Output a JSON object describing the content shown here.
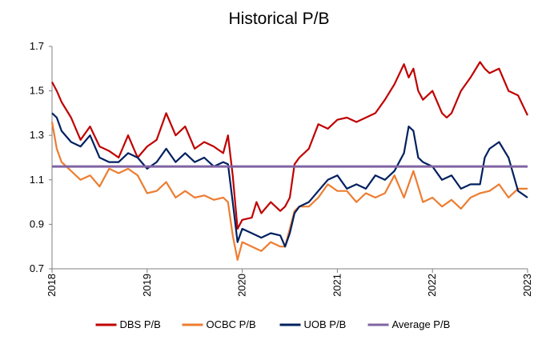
{
  "chart_data": {
    "type": "line",
    "title": "Historical P/B",
    "xlabel": "",
    "ylabel": "",
    "xlim": [
      2018,
      2023
    ],
    "ylim": [
      0.7,
      1.7
    ],
    "y_ticks": [
      "0.7",
      "0.9",
      "1.1",
      "1.3",
      "1.5",
      "1.7"
    ],
    "x_ticks": [
      "2018",
      "2019",
      "2020",
      "2021",
      "2022",
      "2023"
    ],
    "grid": false,
    "legend_position": "bottom",
    "series": [
      {
        "name": "DBS P/B",
        "color": "#C00000",
        "x": [
          2018.0,
          2018.05,
          2018.1,
          2018.2,
          2018.3,
          2018.4,
          2018.5,
          2018.6,
          2018.7,
          2018.8,
          2018.9,
          2019.0,
          2019.1,
          2019.2,
          2019.3,
          2019.4,
          2019.5,
          2019.6,
          2019.7,
          2019.8,
          2019.85,
          2019.9,
          2019.95,
          2020.0,
          2020.1,
          2020.15,
          2020.2,
          2020.3,
          2020.4,
          2020.45,
          2020.5,
          2020.55,
          2020.6,
          2020.7,
          2020.8,
          2020.9,
          2021.0,
          2021.1,
          2021.2,
          2021.3,
          2021.4,
          2021.5,
          2021.6,
          2021.7,
          2021.75,
          2021.8,
          2021.85,
          2021.9,
          2022.0,
          2022.1,
          2022.15,
          2022.2,
          2022.3,
          2022.4,
          2022.5,
          2022.55,
          2022.6,
          2022.7,
          2022.8,
          2022.9,
          2023.0
        ],
        "values": [
          1.54,
          1.5,
          1.45,
          1.38,
          1.28,
          1.34,
          1.25,
          1.23,
          1.2,
          1.3,
          1.2,
          1.25,
          1.28,
          1.4,
          1.3,
          1.34,
          1.24,
          1.27,
          1.25,
          1.22,
          1.3,
          1.12,
          0.88,
          0.92,
          0.93,
          1.0,
          0.95,
          1.0,
          0.96,
          0.98,
          1.02,
          1.17,
          1.2,
          1.24,
          1.35,
          1.33,
          1.37,
          1.38,
          1.36,
          1.38,
          1.4,
          1.46,
          1.53,
          1.62,
          1.56,
          1.6,
          1.5,
          1.46,
          1.5,
          1.4,
          1.38,
          1.4,
          1.5,
          1.56,
          1.63,
          1.6,
          1.58,
          1.6,
          1.5,
          1.48,
          1.39
        ]
      },
      {
        "name": "OCBC P/B",
        "color": "#ED7D31",
        "x": [
          2018.0,
          2018.05,
          2018.1,
          2018.2,
          2018.3,
          2018.4,
          2018.5,
          2018.6,
          2018.7,
          2018.8,
          2018.9,
          2019.0,
          2019.1,
          2019.2,
          2019.3,
          2019.4,
          2019.5,
          2019.6,
          2019.7,
          2019.8,
          2019.85,
          2019.9,
          2019.95,
          2020.0,
          2020.1,
          2020.2,
          2020.3,
          2020.4,
          2020.45,
          2020.5,
          2020.55,
          2020.6,
          2020.7,
          2020.8,
          2020.9,
          2021.0,
          2021.1,
          2021.2,
          2021.3,
          2021.4,
          2021.5,
          2021.6,
          2021.7,
          2021.8,
          2021.9,
          2022.0,
          2022.1,
          2022.2,
          2022.3,
          2022.4,
          2022.5,
          2022.6,
          2022.7,
          2022.8,
          2022.9,
          2023.0
        ],
        "values": [
          1.36,
          1.24,
          1.18,
          1.14,
          1.1,
          1.12,
          1.07,
          1.15,
          1.13,
          1.15,
          1.12,
          1.04,
          1.05,
          1.09,
          1.02,
          1.05,
          1.02,
          1.03,
          1.01,
          1.02,
          1.0,
          0.85,
          0.74,
          0.82,
          0.8,
          0.78,
          0.82,
          0.8,
          0.8,
          0.88,
          0.96,
          0.98,
          0.98,
          1.02,
          1.08,
          1.05,
          1.05,
          1.0,
          1.04,
          1.02,
          1.04,
          1.12,
          1.02,
          1.14,
          1.0,
          1.02,
          0.98,
          1.01,
          0.97,
          1.02,
          1.04,
          1.05,
          1.08,
          1.02,
          1.06,
          1.06
        ]
      },
      {
        "name": "UOB P/B",
        "color": "#002060",
        "x": [
          2018.0,
          2018.05,
          2018.1,
          2018.2,
          2018.3,
          2018.4,
          2018.5,
          2018.6,
          2018.7,
          2018.8,
          2018.9,
          2019.0,
          2019.1,
          2019.2,
          2019.3,
          2019.4,
          2019.5,
          2019.6,
          2019.7,
          2019.8,
          2019.85,
          2019.9,
          2019.95,
          2020.0,
          2020.1,
          2020.2,
          2020.3,
          2020.4,
          2020.45,
          2020.5,
          2020.55,
          2020.6,
          2020.7,
          2020.8,
          2020.9,
          2021.0,
          2021.1,
          2021.2,
          2021.3,
          2021.4,
          2021.5,
          2021.6,
          2021.7,
          2021.75,
          2021.8,
          2021.85,
          2021.9,
          2022.0,
          2022.1,
          2022.2,
          2022.3,
          2022.4,
          2022.5,
          2022.55,
          2022.6,
          2022.7,
          2022.8,
          2022.9,
          2023.0
        ],
        "values": [
          1.4,
          1.38,
          1.32,
          1.27,
          1.25,
          1.3,
          1.2,
          1.18,
          1.18,
          1.22,
          1.2,
          1.15,
          1.18,
          1.24,
          1.18,
          1.22,
          1.18,
          1.2,
          1.16,
          1.18,
          1.17,
          1.0,
          0.82,
          0.88,
          0.86,
          0.84,
          0.86,
          0.85,
          0.8,
          0.86,
          0.95,
          0.98,
          1.0,
          1.05,
          1.1,
          1.12,
          1.06,
          1.08,
          1.06,
          1.12,
          1.1,
          1.14,
          1.22,
          1.34,
          1.32,
          1.2,
          1.18,
          1.16,
          1.1,
          1.12,
          1.06,
          1.08,
          1.08,
          1.2,
          1.24,
          1.27,
          1.2,
          1.05,
          1.02
        ]
      },
      {
        "name": "Average P/B",
        "color": "#8064A2",
        "x": [
          2018.0,
          2023.0
        ],
        "values": [
          1.16,
          1.16
        ]
      }
    ]
  }
}
